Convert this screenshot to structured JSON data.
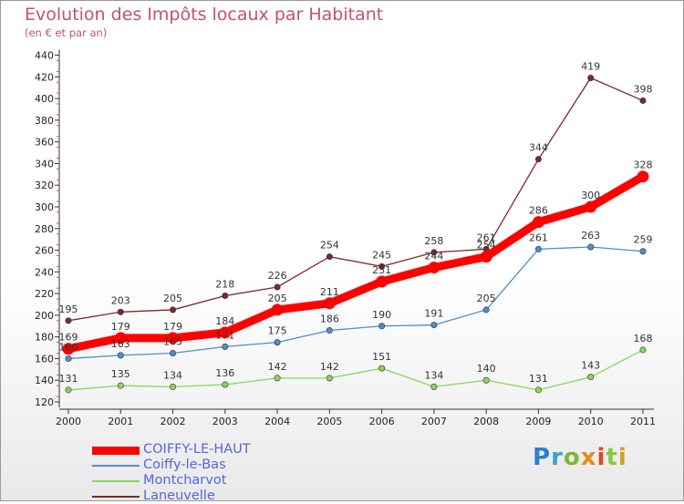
{
  "chart_data": {
    "type": "line",
    "title": "Evolution des Impôts locaux par Habitant",
    "subtitle": "(en € et par an)",
    "x": [
      "2000",
      "2001",
      "2002",
      "2003",
      "2004",
      "2005",
      "2006",
      "2007",
      "2008",
      "2009",
      "2010",
      "2011"
    ],
    "ylim": [
      120,
      440
    ],
    "yticks": [
      120,
      140,
      160,
      180,
      200,
      220,
      240,
      260,
      280,
      300,
      320,
      340,
      360,
      380,
      400,
      420,
      440
    ],
    "grid": false,
    "legend_position": "bottom-left",
    "series": [
      {
        "name": "COIFFY-LE-HAUT",
        "color": "#ff0000",
        "values": [
          169,
          179,
          179,
          184,
          205,
          211,
          231,
          244,
          254,
          286,
          300,
          328
        ]
      },
      {
        "name": "Coiffy-le-Bas",
        "color": "#4f8fc8",
        "values": [
          160,
          163,
          165,
          171,
          175,
          186,
          190,
          191,
          205,
          261,
          263,
          259
        ]
      },
      {
        "name": "Montcharvot",
        "color": "#88d65a",
        "values": [
          131,
          135,
          134,
          136,
          142,
          142,
          151,
          134,
          140,
          131,
          143,
          168
        ]
      },
      {
        "name": "Laneuvelle",
        "color": "#7b2a2a",
        "values": [
          195,
          203,
          205,
          218,
          226,
          254,
          245,
          258,
          261,
          344,
          419,
          398
        ]
      }
    ]
  },
  "logo": {
    "text": "Proxiti"
  }
}
